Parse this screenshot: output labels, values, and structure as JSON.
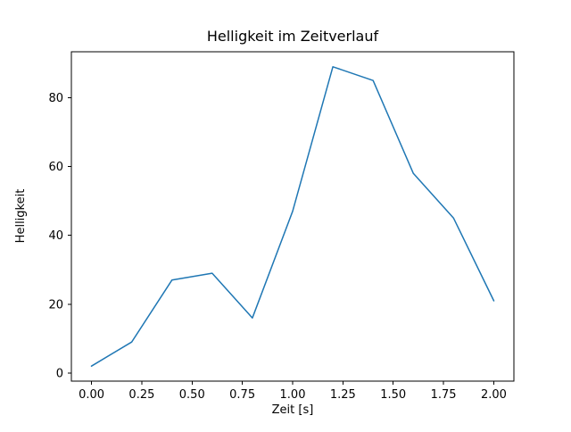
{
  "chart_data": {
    "type": "line",
    "title": "Helligkeit im Zeitverlauf",
    "xlabel": "Zeit [s]",
    "ylabel": "Helligkeit",
    "x": [
      0.0,
      0.2,
      0.4,
      0.6,
      0.8,
      1.0,
      1.2,
      1.4,
      1.6,
      1.8,
      2.0
    ],
    "y": [
      2,
      9,
      27,
      29,
      16,
      47,
      89,
      85,
      58,
      45,
      21
    ],
    "xlim": [
      -0.1,
      2.1
    ],
    "ylim": [
      -2.35,
      93.35
    ],
    "xticks": [
      0.0,
      0.25,
      0.5,
      0.75,
      1.0,
      1.25,
      1.5,
      1.75,
      2.0
    ],
    "xtick_labels": [
      "0.00",
      "0.25",
      "0.50",
      "0.75",
      "1.00",
      "1.25",
      "1.50",
      "1.75",
      "2.00"
    ],
    "yticks": [
      0,
      20,
      40,
      60,
      80
    ],
    "ytick_labels": [
      "0",
      "20",
      "40",
      "60",
      "80"
    ],
    "line_color": "#1f77b4",
    "axis_color": "#000000",
    "background_color": "#ffffff",
    "grid": false,
    "legend": null,
    "markers": false
  }
}
